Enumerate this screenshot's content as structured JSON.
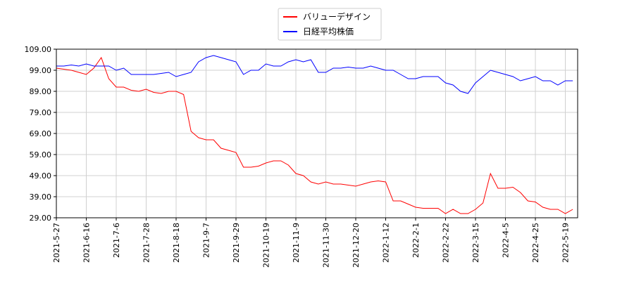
{
  "chart_data": {
    "type": "line",
    "categories": [
      "2021-5-27",
      null,
      null,
      null,
      "2021-6-16",
      null,
      null,
      null,
      "2021-7-6",
      null,
      null,
      null,
      "2021-7-28",
      null,
      null,
      null,
      "2021-8-18",
      null,
      null,
      null,
      "2021-9-7",
      null,
      null,
      null,
      "2021-9-29",
      null,
      null,
      null,
      "2021-10-19",
      null,
      null,
      null,
      "2021-11-9",
      null,
      null,
      null,
      "2021-11-30",
      null,
      null,
      null,
      "2021-12-20",
      null,
      null,
      null,
      "2022-1-12",
      null,
      null,
      null,
      "2022-2-1",
      null,
      null,
      null,
      "2022-2-22",
      null,
      null,
      null,
      "2022-3-15",
      null,
      null,
      null,
      "2022-4-5",
      null,
      null,
      null,
      "2022-4-25",
      null,
      null,
      null,
      "2022-5-19",
      null
    ],
    "series": [
      {
        "name": "バリューデザイン",
        "color": "#ff0000",
        "values": [
          100,
          99.5,
          99,
          98,
          97,
          100,
          105,
          95,
          91,
          91,
          89.5,
          89,
          90,
          88.5,
          88,
          89,
          89,
          87.5,
          70,
          67,
          66,
          66,
          62,
          61,
          60,
          53,
          53,
          53.5,
          55,
          56,
          56,
          54,
          50,
          49,
          46,
          45,
          46,
          45,
          45,
          44.5,
          44,
          45,
          46,
          46.5,
          46,
          37,
          37,
          35.5,
          34,
          33.5,
          33.5,
          33.5,
          31,
          33,
          31,
          31,
          33,
          36,
          50,
          43,
          43,
          43.5,
          41,
          37,
          36.5,
          34,
          33,
          33,
          31,
          33
        ]
      },
      {
        "name": "日経平均株価",
        "color": "#0000ff",
        "values": [
          101,
          101,
          101.5,
          101,
          102,
          101,
          101,
          101,
          99,
          100,
          97,
          97,
          97,
          97,
          97.5,
          98,
          96,
          97,
          98,
          103,
          105,
          106,
          105,
          104,
          103,
          97,
          99,
          99,
          102,
          101,
          101,
          103,
          104,
          103,
          104,
          98,
          98,
          100,
          100,
          100.5,
          100,
          100,
          101,
          100,
          99,
          99,
          97,
          95,
          95,
          96,
          96,
          96,
          93,
          92,
          89,
          88,
          93,
          96,
          99,
          98,
          97,
          96,
          94,
          95,
          96,
          94,
          94,
          92,
          94,
          94
        ]
      }
    ],
    "ylim": [
      29,
      109
    ],
    "yticks": [
      {
        "value": 29,
        "label": "29.00"
      },
      {
        "value": 39,
        "label": "39.00"
      },
      {
        "value": 49,
        "label": "49.00"
      },
      {
        "value": 59,
        "label": "59.00"
      },
      {
        "value": 69,
        "label": "69.00"
      },
      {
        "value": 79,
        "label": "79.00"
      },
      {
        "value": 89,
        "label": "89.00"
      },
      {
        "value": 99,
        "label": "99.00"
      },
      {
        "value": 109,
        "label": "109.00"
      }
    ],
    "grid": true,
    "legend": "top"
  }
}
